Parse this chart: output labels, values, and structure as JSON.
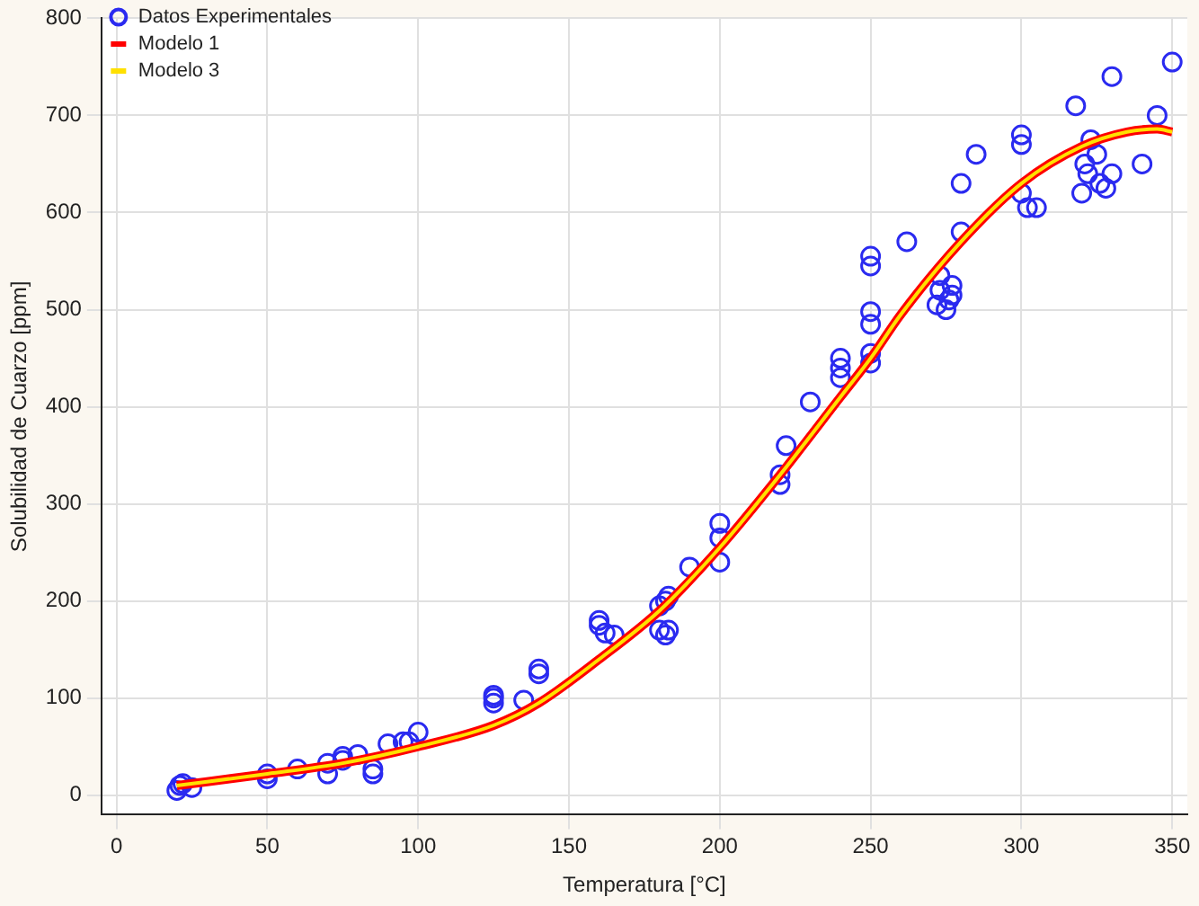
{
  "chart_data": {
    "type": "scatter",
    "xlabel": "Temperatura [°C]",
    "ylabel": "Solubilidad de Cuarzo [ppm]",
    "xlim": [
      -5,
      355
    ],
    "ylim": [
      -20,
      800
    ],
    "xticks": [
      0,
      50,
      100,
      150,
      200,
      250,
      300,
      350
    ],
    "yticks": [
      0,
      100,
      200,
      300,
      400,
      500,
      600,
      700,
      800
    ],
    "grid": true,
    "legend": "top left",
    "series": [
      {
        "name": "Datos Experimentales",
        "marker": "circle",
        "color": "#2a2af0",
        "x": [
          20,
          21,
          22,
          25,
          50,
          50,
          60,
          70,
          70,
          75,
          75,
          80,
          85,
          85,
          90,
          95,
          97,
          100,
          125,
          125,
          125,
          135,
          140,
          140,
          160,
          160,
          162,
          165,
          180,
          182,
          183,
          180,
          182,
          183,
          190,
          200,
          200,
          200,
          220,
          220,
          222,
          230,
          240,
          240,
          240,
          250,
          250,
          250,
          250,
          250,
          250,
          262,
          272,
          273,
          273,
          275,
          276,
          277,
          277,
          280,
          280,
          285,
          300,
          300,
          300,
          302,
          305,
          318,
          320,
          321,
          322,
          323,
          325,
          326,
          328,
          330,
          330,
          340,
          345,
          350
        ],
        "values": [
          5,
          10,
          12,
          8,
          17,
          22,
          27,
          22,
          33,
          36,
          40,
          42,
          27,
          22,
          53,
          55,
          55,
          65,
          95,
          103,
          100,
          98,
          125,
          130,
          180,
          175,
          167,
          165,
          170,
          165,
          170,
          195,
          200,
          205,
          235,
          240,
          265,
          280,
          320,
          330,
          360,
          405,
          430,
          440,
          450,
          445,
          455,
          485,
          498,
          545,
          555,
          570,
          505,
          520,
          535,
          500,
          510,
          515,
          525,
          580,
          630,
          660,
          620,
          670,
          680,
          605,
          605,
          710,
          620,
          650,
          640,
          675,
          660,
          630,
          625,
          640,
          740,
          650,
          700,
          755
        ]
      },
      {
        "name": "Modelo 1",
        "type": "line",
        "marker": "none",
        "color": "#ff0000",
        "x": [
          20,
          50,
          75,
          100,
          125,
          140,
          160,
          180,
          200,
          220,
          240,
          250,
          260,
          280,
          300,
          320,
          335,
          345,
          350
        ],
        "values": [
          10,
          22,
          33,
          50,
          72,
          95,
          140,
          190,
          255,
          330,
          410,
          450,
          495,
          570,
          630,
          668,
          683,
          686,
          683
        ]
      },
      {
        "name": "Modelo 3",
        "type": "line",
        "marker": "none",
        "color": "#ffe000",
        "x": [
          20,
          50,
          75,
          100,
          125,
          140,
          160,
          180,
          200,
          220,
          240,
          250,
          260,
          280,
          300,
          320,
          335,
          345,
          350
        ],
        "values": [
          10,
          22,
          33,
          50,
          72,
          95,
          140,
          190,
          255,
          330,
          410,
          450,
          495,
          570,
          630,
          668,
          683,
          686,
          683
        ]
      }
    ]
  }
}
